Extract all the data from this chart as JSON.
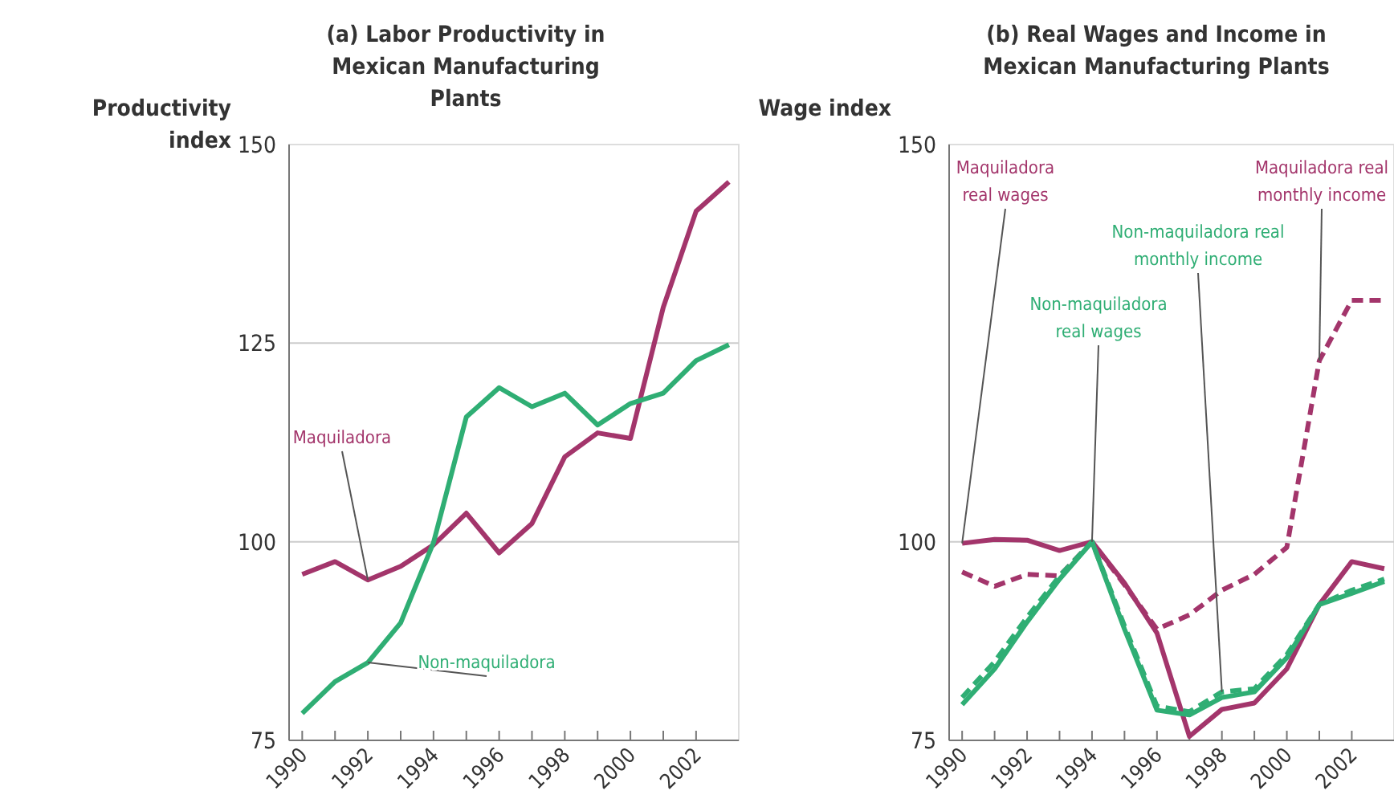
{
  "chart_data": [
    {
      "type": "line",
      "title": "(a) Labor Productivity in Mexican Manufacturing Plants",
      "ylabel": "Productivity index",
      "x": [
        1990,
        1991,
        1992,
        1993,
        1994,
        1995,
        1996,
        1997,
        1998,
        1999,
        2000,
        2001,
        2002,
        2003
      ],
      "xlim": [
        1989.6,
        2003.3
      ],
      "xticks": [
        1990,
        {
          "value": 1991,
          "label": null
        },
        1992,
        {
          "value": 1993,
          "label": null
        },
        1994,
        {
          "value": 1995,
          "label": null
        },
        1996,
        {
          "value": 1997,
          "label": null
        },
        1998,
        {
          "value": 1999,
          "label": null
        },
        2000,
        {
          "value": 2001,
          "label": null
        },
        2002
      ],
      "ylim": [
        75,
        150
      ],
      "yticks": [
        75,
        100,
        125,
        150
      ],
      "grid": "y",
      "legend": false,
      "marker": "none",
      "series": [
        {
          "name": "Maquiladora",
          "color": "#a3356b",
          "line_style": "solid",
          "values": [
            95.9,
            97.5,
            95.2,
            96.9,
            99.6,
            103.6,
            98.6,
            102.3,
            110.7,
            113.7,
            113.0,
            129.5,
            141.6,
            145.3
          ]
        },
        {
          "name": "Non-maquiladora",
          "color": "#2fae74",
          "line_style": "solid",
          "values": [
            78.4,
            82.4,
            84.8,
            89.8,
            99.9,
            115.7,
            119.4,
            117.0,
            118.7,
            114.7,
            117.4,
            118.7,
            122.8,
            124.8
          ]
        }
      ]
    },
    {
      "type": "line",
      "title": "(b) Real Wages and Income in Mexican Manufacturing Plants",
      "ylabel": "Wage index",
      "x": [
        1990,
        1991,
        1992,
        1993,
        1994,
        1995,
        1996,
        1997,
        1998,
        1999,
        2000,
        2001,
        2002,
        2003
      ],
      "xlim": [
        1989.6,
        2003.3
      ],
      "xticks": [
        1990,
        {
          "value": 1991,
          "label": null
        },
        1992,
        {
          "value": 1993,
          "label": null
        },
        1994,
        {
          "value": 1995,
          "label": null
        },
        1996,
        {
          "value": 1997,
          "label": null
        },
        1998,
        {
          "value": 1999,
          "label": null
        },
        2000,
        {
          "value": 2001,
          "label": null
        },
        2002
      ],
      "ylim": [
        75,
        150
      ],
      "yticks": [
        75,
        100,
        150
      ],
      "grid": "y",
      "legend": false,
      "marker": "none",
      "series": [
        {
          "name": "Maquiladora real wages",
          "color": "#a3356b",
          "line_style": "solid",
          "values": [
            99.8,
            100.3,
            100.2,
            98.9,
            100,
            94.8,
            88.5,
            75.5,
            78.9,
            79.7,
            84.0,
            92.1,
            97.5,
            96.6
          ]
        },
        {
          "name": "Maquiladora real monthly income",
          "color": "#a3356b",
          "line_style": "dashed",
          "values": [
            96.2,
            94.4,
            95.9,
            95.7,
            100,
            94.6,
            89.0,
            90.8,
            93.9,
            95.9,
            99.3,
            122.8,
            130.4,
            130.4
          ]
        },
        {
          "name": "Non-maquiladora real monthly income",
          "color": "#2fae74",
          "line_style": "dashed",
          "values": [
            80.4,
            84.9,
            90.5,
            95.7,
            100,
            89.4,
            79.3,
            78.6,
            81.1,
            81.5,
            85.8,
            92.1,
            93.9,
            95.3
          ]
        },
        {
          "name": "Non-maquiladora real wages",
          "color": "#2fae74",
          "line_style": "solid",
          "values": [
            79.5,
            84.0,
            89.9,
            95.3,
            100,
            89.0,
            78.8,
            78.2,
            80.4,
            81.1,
            85.4,
            92.1,
            93.5,
            95.0
          ]
        }
      ]
    }
  ]
}
